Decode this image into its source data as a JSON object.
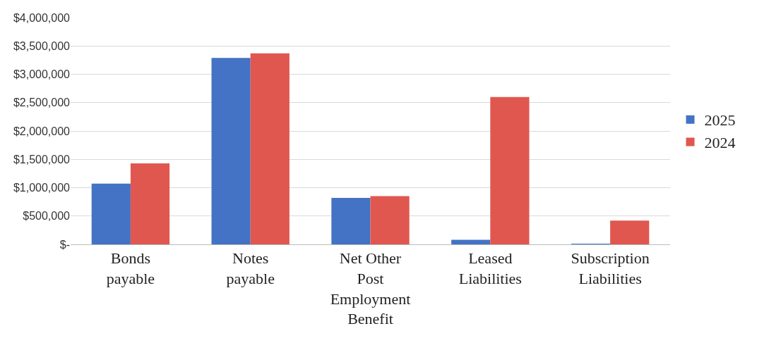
{
  "chart_data": {
    "type": "bar",
    "categories": [
      "Bonds payable",
      "Notes payable",
      "Net Other Post Employment Benefit",
      "Leased Liabilities",
      "Subscription Liabilities"
    ],
    "series": [
      {
        "name": "2025",
        "color": "#4472c4",
        "values": [
          1070000,
          3290000,
          820000,
          80000,
          10000
        ]
      },
      {
        "name": "2024",
        "color": "#e0574f",
        "values": [
          1430000,
          3370000,
          850000,
          2600000,
          420000
        ]
      }
    ],
    "ylim": [
      0,
      4000000
    ],
    "yticks": [
      {
        "value": 0,
        "label": "$-"
      },
      {
        "value": 500000,
        "label": "$500,000"
      },
      {
        "value": 1000000,
        "label": "$1,000,000"
      },
      {
        "value": 1500000,
        "label": "$1,500,000"
      },
      {
        "value": 2000000,
        "label": "$2,000,000"
      },
      {
        "value": 2500000,
        "label": "$2,500,000"
      },
      {
        "value": 3000000,
        "label": "$3,000,000"
      },
      {
        "value": 3500000,
        "label": "$3,500,000"
      },
      {
        "value": 4000000,
        "label": "$4,000,000"
      }
    ],
    "grid": "y",
    "legend": "right"
  }
}
